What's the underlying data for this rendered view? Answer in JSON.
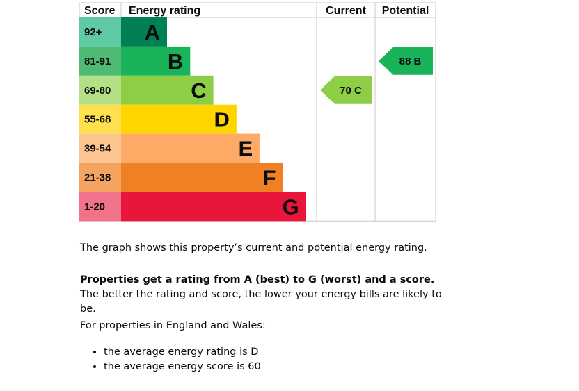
{
  "chart_data": {
    "type": "bar",
    "headers": {
      "score": "Score",
      "rating": "Energy rating",
      "current": "Current",
      "potential": "Potential"
    },
    "bands": [
      {
        "band": "A",
        "range": "92+",
        "max_score": 100,
        "color": "#008054",
        "score_color": "#5fc9a3"
      },
      {
        "band": "B",
        "range": "81-91",
        "max_score": 91,
        "color": "#19b459",
        "score_color": "#4fba73"
      },
      {
        "band": "C",
        "range": "69-80",
        "max_score": 80,
        "color": "#8dce46",
        "score_color": "#b5df84"
      },
      {
        "band": "D",
        "range": "55-68",
        "max_score": 68,
        "color": "#ffd500",
        "score_color": "#ffe14f"
      },
      {
        "band": "E",
        "range": "39-54",
        "max_score": 54,
        "color": "#fcaa65",
        "score_color": "#fdc48f"
      },
      {
        "band": "F",
        "range": "21-38",
        "max_score": 38,
        "color": "#ef8023",
        "score_color": "#f4a460"
      },
      {
        "band": "G",
        "range": "1-20",
        "max_score": 20,
        "color": "#e9153b",
        "score_color": "#f0738a"
      }
    ],
    "current": {
      "score": 70,
      "band": "C",
      "label": "70 C",
      "color": "#8dce46"
    },
    "potential": {
      "score": 88,
      "band": "B",
      "label": "88 B",
      "color": "#19b459"
    }
  },
  "text": {
    "p1": "The graph shows this property’s current and potential energy rating.",
    "p2_bold": "Properties get a rating from A (best) to G (worst) and a score.",
    "p2_rest": " The better the rating and score, the lower your energy bills are likely to be.",
    "p3": "For properties in England and Wales:",
    "bullets": [
      "the average energy rating is D",
      "the average energy score is 60"
    ]
  }
}
